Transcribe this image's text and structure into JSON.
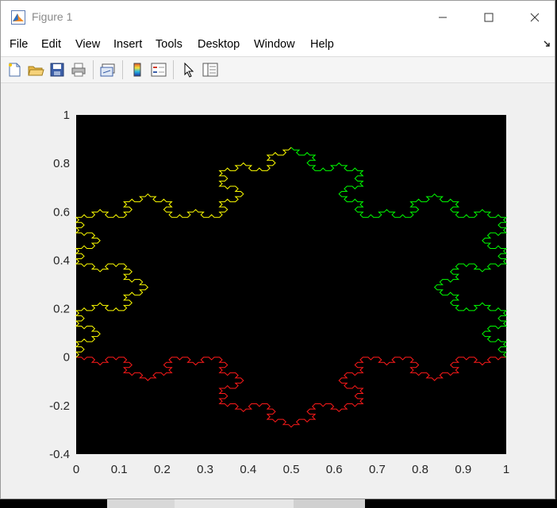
{
  "window": {
    "title": "Figure 1"
  },
  "menubar": {
    "items": [
      {
        "label": "File"
      },
      {
        "label": "Edit"
      },
      {
        "label": "View"
      },
      {
        "label": "Insert"
      },
      {
        "label": "Tools"
      },
      {
        "label": "Desktop"
      },
      {
        "label": "Window"
      },
      {
        "label": "Help"
      }
    ]
  },
  "toolbar": {
    "buttons": [
      "new-figure-icon",
      "open-file-icon",
      "save-icon",
      "print-icon",
      "link-plot-icon",
      "insert-colorbar-icon",
      "insert-legend-icon",
      "edit-plot-pointer-icon",
      "property-inspector-icon"
    ]
  },
  "colors": {
    "axes_background": "#000000",
    "red": "#ff1a1a",
    "yellow": "#ffff00",
    "green": "#00ff00"
  },
  "chart_data": {
    "type": "line",
    "title": "",
    "xlabel": "",
    "ylabel": "",
    "xlim": [
      0,
      1
    ],
    "ylim": [
      -0.4,
      1
    ],
    "x_ticks": [
      "0",
      "0.1",
      "0.2",
      "0.3",
      "0.4",
      "0.5",
      "0.6",
      "0.7",
      "0.8",
      "0.9",
      "1"
    ],
    "y_ticks": [
      "-0.4",
      "-0.2",
      "0",
      "0.2",
      "0.4",
      "0.6",
      "0.8",
      "1"
    ],
    "x_tick_values": [
      0,
      0.1,
      0.2,
      0.3,
      0.4,
      0.5,
      0.6,
      0.7,
      0.8,
      0.9,
      1
    ],
    "y_tick_values": [
      -0.4,
      -0.2,
      0,
      0.2,
      0.4,
      0.6,
      0.8,
      1
    ],
    "grid": false,
    "series": [
      {
        "color": "#ff1a1a",
        "start": [
          0,
          0
        ],
        "end": [
          1,
          0
        ],
        "curve": "koch",
        "depth": 4,
        "bulge": "down"
      },
      {
        "color": "#ffff00",
        "start": [
          0.5,
          0.866
        ],
        "end": [
          0,
          0
        ],
        "curve": "koch",
        "depth": 4,
        "bulge": "outward"
      },
      {
        "color": "#00ff00",
        "start": [
          1,
          0
        ],
        "end": [
          0.5,
          0.866
        ],
        "curve": "koch",
        "depth": 4,
        "bulge": "outward"
      }
    ]
  }
}
